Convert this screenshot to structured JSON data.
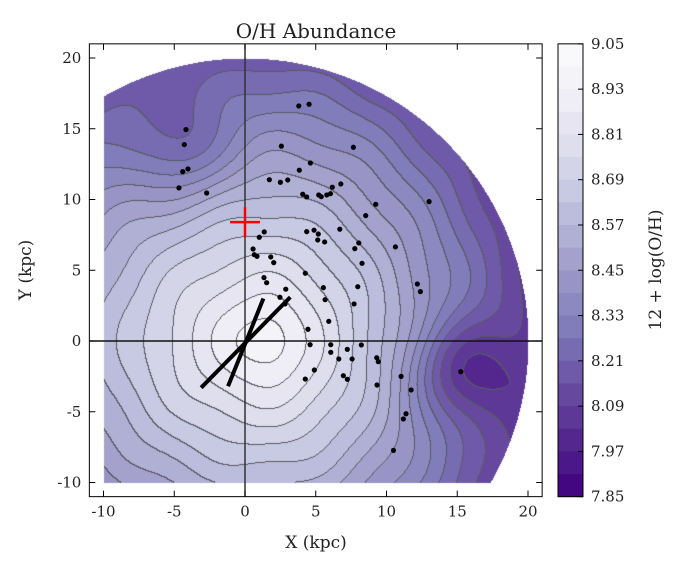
{
  "chart_data": {
    "type": "heatmap",
    "subtype": "filled-contour with scatter overlay",
    "title": "O/H Abundance",
    "xlabel": "X (kpc)",
    "ylabel": "Y (kpc)",
    "xlim": [
      -11,
      21
    ],
    "ylim": [
      -11,
      21
    ],
    "xticks": [
      "-10",
      "-5",
      "0",
      "5",
      "10",
      "15",
      "20"
    ],
    "xtick_values": [
      -10,
      -5,
      0,
      5,
      10,
      15,
      20
    ],
    "yticks": [
      "-10",
      "-5",
      "0",
      "5",
      "10",
      "15",
      "20"
    ],
    "ytick_values": [
      -10,
      -5,
      0,
      5,
      10,
      15,
      20
    ],
    "colormap": "Purples (reversed: high = light)",
    "colorbar": {
      "label": "12 + log(O/H)",
      "range": [
        7.85,
        9.05
      ],
      "ticks": [
        "9.05",
        "8.93",
        "8.81",
        "8.69",
        "8.57",
        "8.45",
        "8.33",
        "8.21",
        "8.09",
        "7.97",
        "7.85"
      ],
      "levels_step": 0.06
    },
    "field_domain": {
      "radius_kpc": 20,
      "xmin": -10,
      "ymin": -10
    },
    "field_model": {
      "peak_value": 9.0,
      "peak_center": [
        1.5,
        0
      ],
      "minima": [
        {
          "center": [
            15.3,
            -2.1
          ],
          "depth": 0.28
        },
        {
          "center": [
            -4.4,
            13.5
          ],
          "depth": 0.18
        }
      ]
    },
    "sun_marker": {
      "x": 0,
      "y": 8.4,
      "color": "#ff0000"
    },
    "bar_lines": [
      {
        "from": [
          -3.1,
          -3.3
        ],
        "to": [
          3.2,
          3.1
        ]
      },
      {
        "from": [
          -1.2,
          -3.2
        ],
        "to": [
          1.3,
          3.0
        ]
      }
    ],
    "axis_lines": {
      "x0": 0,
      "y0": 0
    },
    "points": [
      [
        3.8,
        16.61
      ],
      [
        4.53,
        16.73
      ],
      [
        -4.17,
        14.94
      ],
      [
        -4.29,
        13.88
      ],
      [
        -4.03,
        12.16
      ],
      [
        -4.4,
        11.97
      ],
      [
        -4.67,
        10.82
      ],
      [
        -2.71,
        10.46
      ],
      [
        2.57,
        13.77
      ],
      [
        7.66,
        13.69
      ],
      [
        4.62,
        12.58
      ],
      [
        3.84,
        12.07
      ],
      [
        1.72,
        11.4
      ],
      [
        2.5,
        11.22
      ],
      [
        3.02,
        11.38
      ],
      [
        4.08,
        10.37
      ],
      [
        4.36,
        10.18
      ],
      [
        5.21,
        10.32
      ],
      [
        5.39,
        10.2
      ],
      [
        5.78,
        10.32
      ],
      [
        6.04,
        10.41
      ],
      [
        6.17,
        10.87
      ],
      [
        6.77,
        11.1
      ],
      [
        1.36,
        7.71
      ],
      [
        1.01,
        7.33
      ],
      [
        4.36,
        7.73
      ],
      [
        4.88,
        7.83
      ],
      [
        5.18,
        7.56
      ],
      [
        5.14,
        7.14
      ],
      [
        5.63,
        7.0
      ],
      [
        6.7,
        7.9
      ],
      [
        7.76,
        6.53
      ],
      [
        0.57,
        6.5
      ],
      [
        0.66,
        6.1
      ],
      [
        0.85,
        5.99
      ],
      [
        1.82,
        5.94
      ],
      [
        2.03,
        5.54
      ],
      [
        4.26,
        4.79
      ],
      [
        1.34,
        4.48
      ],
      [
        1.53,
        4.12
      ],
      [
        5.54,
        3.77
      ],
      [
        9.24,
        9.66
      ],
      [
        8.53,
        8.86
      ],
      [
        13.01,
        9.85
      ],
      [
        8.04,
        6.93
      ],
      [
        10.63,
        6.65
      ],
      [
        8.27,
        5.49
      ],
      [
        7.97,
        3.84
      ],
      [
        12.18,
        4.03
      ],
      [
        12.39,
        3.49
      ],
      [
        2.88,
        3.66
      ],
      [
        2.47,
        3.09
      ],
      [
        2.83,
        2.62
      ],
      [
        5.66,
        2.92
      ],
      [
        7.71,
        2.62
      ],
      [
        5.92,
        1.39
      ],
      [
        4.45,
        0.83
      ],
      [
        4.6,
        -0.26
      ],
      [
        6.06,
        -0.26
      ],
      [
        6.06,
        -0.8
      ],
      [
        6.63,
        -1.27
      ],
      [
        7.23,
        -0.59
      ],
      [
        7.57,
        -1.27
      ],
      [
        8.22,
        -0.28
      ],
      [
        9.31,
        -1.18
      ],
      [
        9.42,
        -1.46
      ],
      [
        4.9,
        -2.05
      ],
      [
        4.26,
        -2.69
      ],
      [
        6.95,
        -2.45
      ],
      [
        7.23,
        -2.71
      ],
      [
        9.33,
        -3.11
      ],
      [
        11.03,
        -2.5
      ],
      [
        11.74,
        -3.46
      ],
      [
        11.38,
        -5.14
      ],
      [
        11.19,
        -5.51
      ],
      [
        10.49,
        -7.73
      ],
      [
        15.25,
        -2.17
      ]
    ],
    "grid": false
  },
  "colors": {
    "cmap_stops": [
      "#fcfbfd",
      "#efedf5",
      "#dadaeb",
      "#bcbddc",
      "#9e9ac8",
      "#807dba",
      "#6a51a3",
      "#54278f",
      "#3f007d"
    ],
    "contour_line": "#555555",
    "point": "#000000",
    "bar": "#000000"
  }
}
